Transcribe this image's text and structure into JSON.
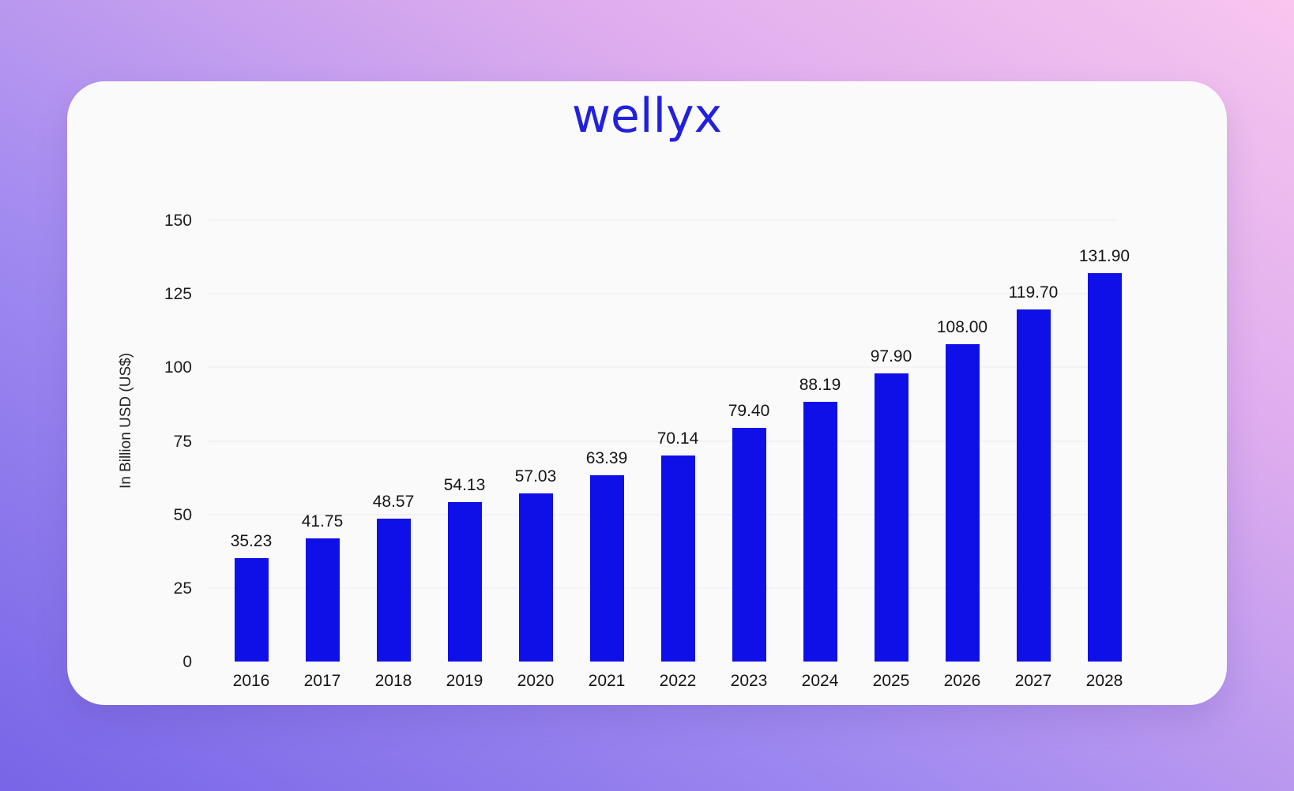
{
  "logo": {
    "text": "wellyx",
    "color": "#2121dd"
  },
  "colors": {
    "bar": "#0f10e8",
    "card_background": "#fbfafb",
    "gradient_top_left": "#a18af0",
    "gradient_top_right": "#f8c6ee",
    "gradient_bottom_left": "#7765e7",
    "gradient_bottom_right": "#dfadee",
    "label_text": "#151515"
  },
  "chart_data": {
    "type": "bar",
    "title": "wellyx",
    "categories": [
      "2016",
      "2017",
      "2018",
      "2019",
      "2020",
      "2021",
      "2022",
      "2023",
      "2024",
      "2025",
      "2026",
      "2027",
      "2028"
    ],
    "values": [
      35.23,
      41.75,
      48.57,
      54.13,
      57.03,
      63.39,
      70.14,
      79.4,
      88.19,
      97.9,
      108.0,
      119.7,
      131.9
    ],
    "value_labels": [
      "35.23",
      "41.75",
      "48.57",
      "54.13",
      "57.03",
      "63.39",
      "70.14",
      "79.40",
      "88.19",
      "97.90",
      "108.00",
      "119.70",
      "131.90"
    ],
    "xlabel": "",
    "ylabel": "In Billion USD (US$)",
    "yticks": [
      0,
      25,
      50,
      75,
      100,
      125,
      150
    ],
    "ylim": [
      0,
      150
    ],
    "grid": "faint horizontal lines",
    "legend": "none"
  }
}
